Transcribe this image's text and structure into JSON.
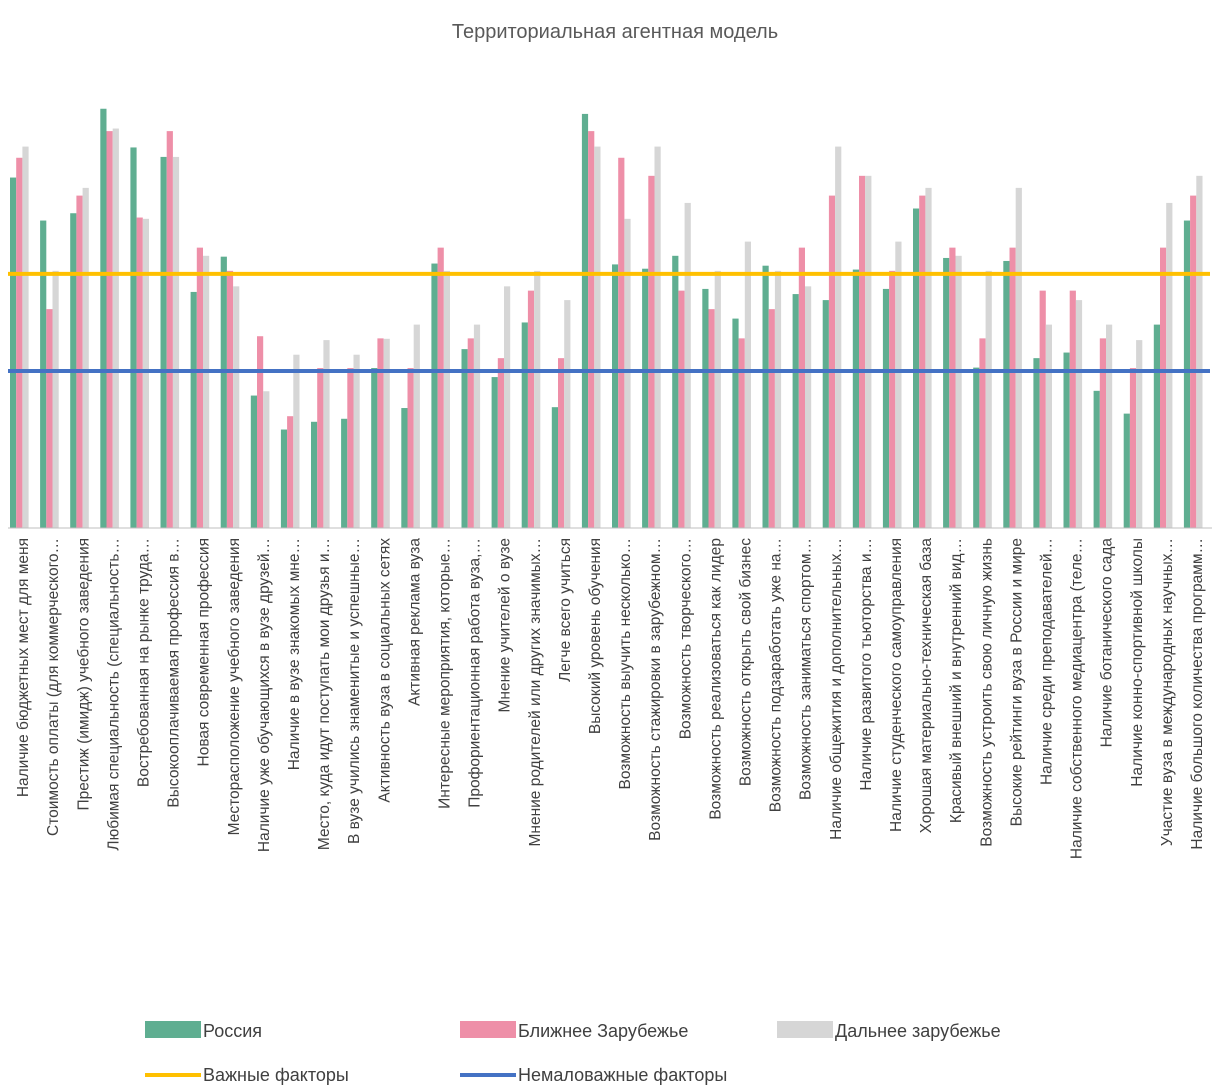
{
  "colors": {
    "russia": "#5FAE91",
    "near_abroad": "#EE8FA8",
    "far_abroad": "#D6D6D6",
    "important": "#FFC000",
    "not_unimportant": "#4472C4",
    "axis": "#BFBFBF"
  },
  "chart_data": {
    "type": "bar",
    "title": "Территориальная агентная модель",
    "legend_position": "bottom",
    "ylim": [
      0,
      100
    ],
    "grid": false,
    "categories": [
      "Наличие бюджетных мест для меня",
      "Стоимость оплаты (для коммерческого…",
      "Престиж (имидж) учебного заведения",
      "Любимая специальность (специальность…",
      "Востребованная на рынке труда…",
      "Высокооплачиваемая профессия в…",
      "Новая современная профессия",
      "Месторасположение учебного заведения",
      "Наличие уже обучающихся в вузе друзей…",
      "Наличие в вузе знакомых мне…",
      "Место, куда идут поступать мои друзья и…",
      "В вузе учились знаменитые и успешные…",
      "Активность вуза в социальных сетях",
      "Активная реклама вуза",
      "Интересные мероприятия, которые…",
      "Профориентационная работа вуза,…",
      "Мнение учителей о вузе",
      "Мнение родителей или других значимых…",
      "Легче всего учиться",
      "Высокий уровень обучения",
      "Возможность выучить несколько…",
      "Возможность стажировки в зарубежном…",
      "Возможность творческого…",
      "Возможность реализоваться как лидер",
      "Возможность открыть свой бизнес",
      "Возможность подзаработать уже на…",
      "Возможность заниматься спортом…",
      "Наличие общежития и дополнительных…",
      "Наличие развитого тьюторства и…",
      "Наличие студенческого самоуправления",
      "Хорошая материально-техническая база",
      "Красивый внешний и внутренний вид…",
      "Возможность устроить свою личную жизнь",
      "Высокие рейтинги вуза в России и мире",
      "Наличие среди преподавателей…",
      "Наличие собственного медиацентра (теле…",
      "Наличие ботанического сада",
      "Наличие конно-спортивной школы",
      "Участие вуза в международных научных…",
      "Наличие большого количества программ…"
    ],
    "series": [
      {
        "name": "Россия",
        "values": [
          81.5,
          71.5,
          73.2,
          97.5,
          88.5,
          86.3,
          54.9,
          63.1,
          30.8,
          22.9,
          24.7,
          25.4,
          37.2,
          27.9,
          61.5,
          41.6,
          35.1,
          47.8,
          28.1,
          96.3,
          61.3,
          60.3,
          63.3,
          55.6,
          48.7,
          61.0,
          54.4,
          53.0,
          60.1,
          55.6,
          74.3,
          62.8,
          37.3,
          62.1,
          39.5,
          40.8,
          31.9,
          26.6,
          47.3,
          71.5
        ]
      },
      {
        "name": "Ближнее Зарубежье",
        "values": [
          86.1,
          50.9,
          77.3,
          92.3,
          72.2,
          92.3,
          65.2,
          59.8,
          44.6,
          26.0,
          37.2,
          37.2,
          44.1,
          37.2,
          65.2,
          44.1,
          39.5,
          55.2,
          39.5,
          92.3,
          86.1,
          81.9,
          55.2,
          50.9,
          44.1,
          50.9,
          65.2,
          77.3,
          81.9,
          59.8,
          77.3,
          65.2,
          44.1,
          65.2,
          55.2,
          55.2,
          44.1,
          37.2,
          65.2,
          77.3
        ]
      },
      {
        "name": "Дальнее зарубежье",
        "values": [
          88.7,
          59.8,
          79.1,
          92.9,
          71.9,
          86.3,
          63.3,
          56.2,
          31.8,
          40.3,
          43.7,
          40.3,
          44.0,
          47.3,
          59.8,
          47.3,
          56.2,
          59.8,
          53.0,
          88.7,
          71.9,
          88.7,
          75.6,
          59.8,
          66.6,
          59.8,
          56.2,
          88.7,
          81.9,
          66.6,
          79.1,
          63.3,
          59.8,
          79.1,
          47.3,
          53.0,
          47.3,
          43.7,
          75.6,
          81.9
        ]
      }
    ],
    "reference_lines": [
      {
        "name": "Важные факторы",
        "value": 59.1
      },
      {
        "name": "Немаловажные факторы",
        "value": 36.5
      }
    ]
  }
}
